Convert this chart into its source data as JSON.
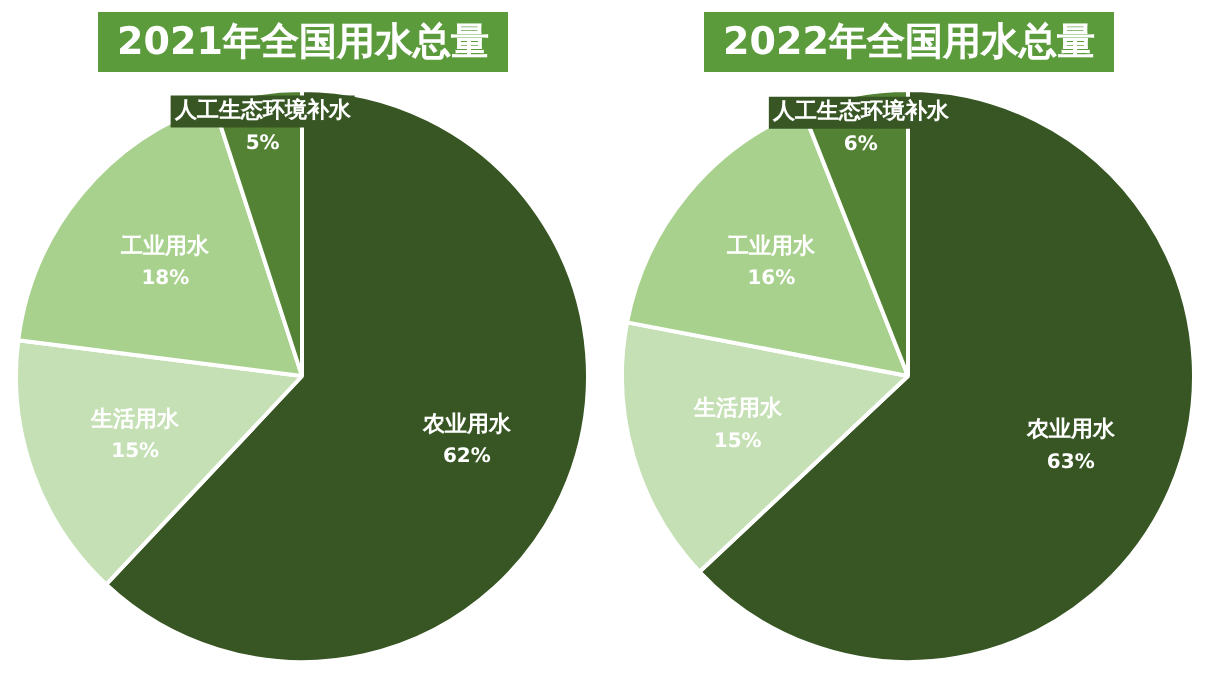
{
  "chart_data": [
    {
      "type": "pie",
      "title": "2021年全国用水总量",
      "categories": [
        "农业用水",
        "生活用水",
        "工业用水",
        "人工生态环境补水"
      ],
      "values": [
        62,
        15,
        18,
        5
      ],
      "value_labels": [
        "62%",
        "15%",
        "18%",
        "5%"
      ],
      "colors": [
        "#375623",
        "#c5e0b4",
        "#a9d18e",
        "#548235"
      ]
    },
    {
      "type": "pie",
      "title": "2022年全国用水总量",
      "categories": [
        "农业用水",
        "生活用水",
        "工业用水",
        "人工生态环境补水"
      ],
      "values": [
        63,
        15,
        16,
        6
      ],
      "value_labels": [
        "63%",
        "15%",
        "16%",
        "6%"
      ],
      "colors": [
        "#375623",
        "#c5e0b4",
        "#a9d18e",
        "#548235"
      ]
    }
  ]
}
